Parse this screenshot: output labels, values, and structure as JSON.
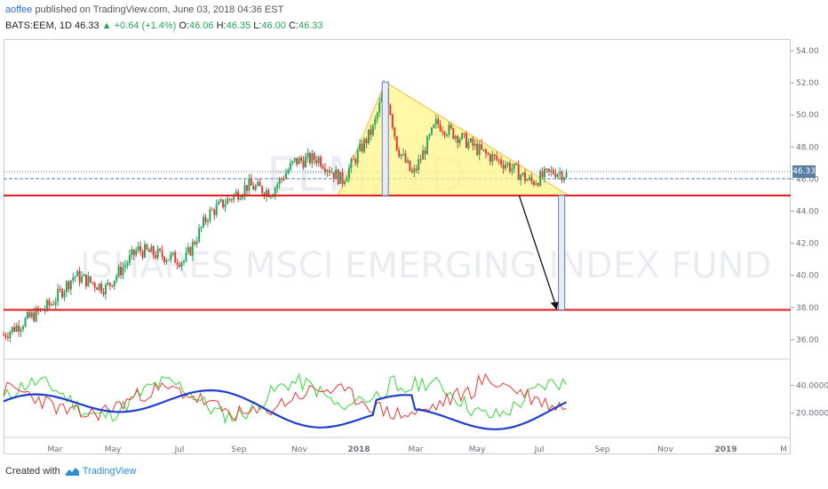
{
  "header": {
    "author": "aoffee",
    "published_text": "published on TradingView.com, June 03, 2018 04:36 EST",
    "symbol": "BATS:EEM, 1D",
    "last": "46.33",
    "change": "+0.64 (+1.4%)",
    "o_label": "O:",
    "o": "46.06",
    "h_label": "H:",
    "h": "46.35",
    "l_label": "L:",
    "l": "46.00",
    "c_label": "C:",
    "c": "46.33"
  },
  "watermark": {
    "symbol": "EEM, 1D",
    "name": "ISHARES MSCI EMERGING INDEX FUND"
  },
  "price_tag": "46.33",
  "footer": {
    "created_with": "Created with",
    "brand": "TradingView"
  },
  "colors": {
    "up": "#26a65b",
    "down": "#e53935",
    "support_line": "#e0191b",
    "triangle_fill": "#fff58a",
    "triangle_stroke": "#f5b942",
    "blue_line": "#1f3fd0",
    "red_line": "#e53935",
    "green_line": "#37d737"
  },
  "chart_data": {
    "type": "candlestick",
    "symbol": "BATS:EEM",
    "price_axis": {
      "ylim": [
        35,
        54.5
      ],
      "ticks": [
        "54.00",
        "52.00",
        "50.00",
        "48.00",
        "46.00",
        "44.00",
        "42.00",
        "40.00",
        "38.00",
        "36.00"
      ]
    },
    "indicator_axis": {
      "ticks": [
        "40.0000",
        "20.0000"
      ]
    },
    "time_axis": {
      "ticks": [
        "Mar",
        "May",
        "Jul",
        "Sep",
        "Nov",
        "2018",
        "Mar",
        "May",
        "Jul",
        "Sep",
        "Nov",
        "2019",
        "M"
      ]
    },
    "horizontal_lines": [
      44.98,
      37.85
    ],
    "triangle": {
      "apex_price": 52.05,
      "base_price": 44.98
    },
    "arrow_target_price": 37.85,
    "price_keypoints": [
      {
        "t": 0,
        "p": 36.3
      },
      {
        "t": 0.06,
        "p": 38.2
      },
      {
        "t": 0.09,
        "p": 40.0
      },
      {
        "t": 0.13,
        "p": 39.2
      },
      {
        "t": 0.17,
        "p": 41.6
      },
      {
        "t": 0.23,
        "p": 40.9
      },
      {
        "t": 0.26,
        "p": 43.8
      },
      {
        "t": 0.31,
        "p": 45.6
      },
      {
        "t": 0.34,
        "p": 45.2
      },
      {
        "t": 0.37,
        "p": 47.1
      },
      {
        "t": 0.4,
        "p": 47.3
      },
      {
        "t": 0.43,
        "p": 45.9
      },
      {
        "t": 0.47,
        "p": 49.2
      },
      {
        "t": 0.485,
        "p": 51.9
      },
      {
        "t": 0.5,
        "p": 48.0
      },
      {
        "t": 0.52,
        "p": 46.2
      },
      {
        "t": 0.55,
        "p": 49.5
      },
      {
        "t": 0.58,
        "p": 48.6
      },
      {
        "t": 0.61,
        "p": 47.6
      },
      {
        "t": 0.64,
        "p": 46.9
      },
      {
        "t": 0.67,
        "p": 45.8
      },
      {
        "t": 0.7,
        "p": 46.5
      },
      {
        "t": 0.715,
        "p": 46.3
      }
    ]
  }
}
